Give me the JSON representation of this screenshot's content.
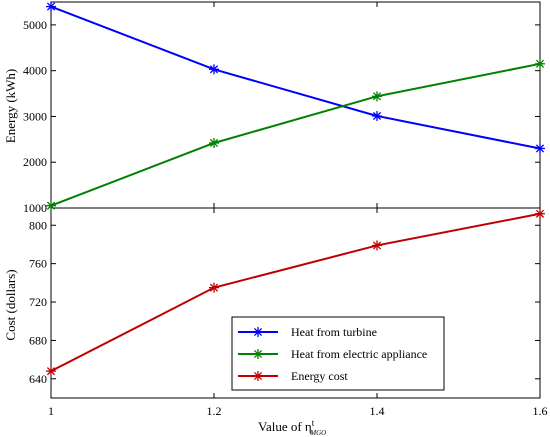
{
  "chart_data": [
    {
      "type": "line",
      "panel": "top",
      "x": [
        1,
        1.2,
        1.4,
        1.6
      ],
      "ylabel": "Energy (kWh)",
      "ylim": [
        1000,
        5500
      ],
      "yticks": [
        1000,
        2000,
        3000,
        4000,
        5000
      ],
      "grid": false,
      "series": [
        {
          "name": "Heat from turbine",
          "values": [
            5400,
            4030,
            3010,
            2300
          ],
          "color": "#0000ff",
          "marker": "asterisk"
        },
        {
          "name": "Heat from electric appliance",
          "values": [
            1050,
            2420,
            3440,
            4150
          ],
          "color": "#008000",
          "marker": "asterisk"
        }
      ]
    },
    {
      "type": "line",
      "panel": "bottom",
      "x": [
        1,
        1.2,
        1.4,
        1.6
      ],
      "xlabel": "Value of η",
      "xlabel_sub": "MGO",
      "xlabel_sup": "t",
      "xticks": [
        "1",
        "1.2",
        "1.4",
        "1.6"
      ],
      "xlim": [
        1,
        1.6
      ],
      "ylabel": "Cost (dollars)",
      "ylim": [
        620,
        818
      ],
      "yticks": [
        640,
        680,
        720,
        760,
        800
      ],
      "grid": false,
      "legend": "bottom-right",
      "series": [
        {
          "name": "Energy cost",
          "values": [
            648,
            735,
            779,
            812
          ],
          "color": "#c00000",
          "marker": "asterisk"
        }
      ]
    }
  ],
  "legend": {
    "items": [
      {
        "label": "Heat from turbine",
        "color": "#0000ff"
      },
      {
        "label": "Heat from electric appliance",
        "color": "#008000"
      },
      {
        "label": "Energy cost",
        "color": "#c00000"
      }
    ]
  }
}
